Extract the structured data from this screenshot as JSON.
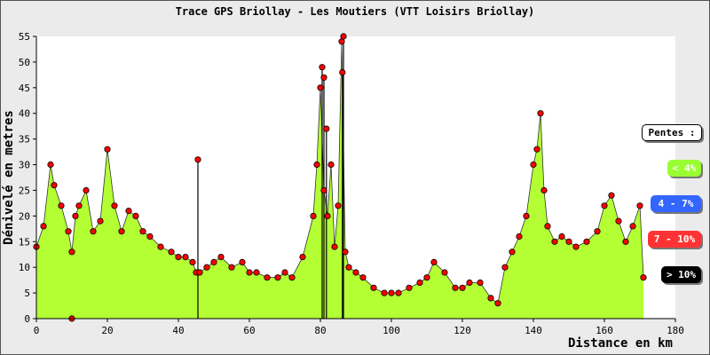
{
  "chart_data": {
    "type": "area",
    "title": "Trace GPS Briollay - Les Moutiers (VTT Loisirs Briollay)",
    "xlabel": "Distance en km",
    "ylabel": "Dénivelé en metres",
    "xlim": [
      0,
      180
    ],
    "ylim": [
      0,
      55
    ],
    "x_ticks": [
      0,
      20,
      40,
      60,
      80,
      100,
      120,
      140,
      160,
      180
    ],
    "y_ticks": [
      0,
      5,
      10,
      15,
      20,
      25,
      30,
      35,
      40,
      45,
      50,
      55
    ],
    "grid": false,
    "legend_placement": "right",
    "fill_color": "#b3ff33",
    "point_color": "#ff0000",
    "profile": {
      "x": [
        0,
        2,
        4,
        5,
        7,
        9,
        10,
        11,
        12,
        14,
        16,
        18,
        20,
        22,
        24,
        26,
        28,
        30,
        32,
        35,
        38,
        40,
        42,
        44,
        45,
        46,
        48,
        50,
        52,
        55,
        58,
        60,
        62,
        65,
        68,
        70,
        72,
        75,
        78,
        79,
        80,
        81,
        82,
        83,
        84,
        85,
        86,
        87,
        88,
        90,
        92,
        95,
        98,
        100,
        102,
        105,
        108,
        110,
        112,
        115,
        118,
        120,
        122,
        125,
        128,
        130,
        132,
        134,
        136,
        138,
        140,
        141,
        142,
        143,
        144,
        146,
        148,
        150,
        152,
        155,
        158,
        160,
        162,
        164,
        166,
        168,
        170,
        171
      ],
      "y": [
        14,
        18,
        30,
        26,
        22,
        17,
        13,
        20,
        22,
        25,
        17,
        19,
        33,
        22,
        17,
        21,
        20,
        17,
        16,
        14,
        13,
        12,
        12,
        11,
        9,
        9,
        10,
        11,
        12,
        10,
        11,
        9,
        9,
        8,
        8,
        9,
        8,
        12,
        20,
        30,
        45,
        25,
        20,
        30,
        14,
        22,
        54,
        13,
        10,
        9,
        8,
        6,
        5,
        5,
        5,
        6,
        7,
        8,
        11,
        9,
        6,
        6,
        7,
        7,
        4,
        3,
        10,
        13,
        16,
        20,
        30,
        33,
        40,
        25,
        18,
        15,
        16,
        15,
        14,
        15,
        17,
        22,
        24,
        19,
        15,
        18,
        22,
        8
      ],
      "spikes": [
        {
          "x": 45.5,
          "y": 31
        },
        {
          "x": 80.5,
          "y": 49
        },
        {
          "x": 81,
          "y": 47
        },
        {
          "x": 81.7,
          "y": 37
        },
        {
          "x": 86.5,
          "y": 55
        },
        {
          "x": 86.2,
          "y": 48
        },
        {
          "x": 10,
          "y": 0
        }
      ]
    },
    "legend": {
      "title": "Pentes :",
      "entries": [
        {
          "label": "< 4%",
          "color": "#99ff33",
          "text_color": "#ffffff"
        },
        {
          "label": "4 - 7%",
          "color": "#3366ff",
          "text_color": "#ffffff"
        },
        {
          "label": "7 - 10%",
          "color": "#ff3333",
          "text_color": "#ffffff"
        },
        {
          "label": "> 10%",
          "color": "#000000",
          "text_color": "#ffffff"
        }
      ]
    }
  }
}
